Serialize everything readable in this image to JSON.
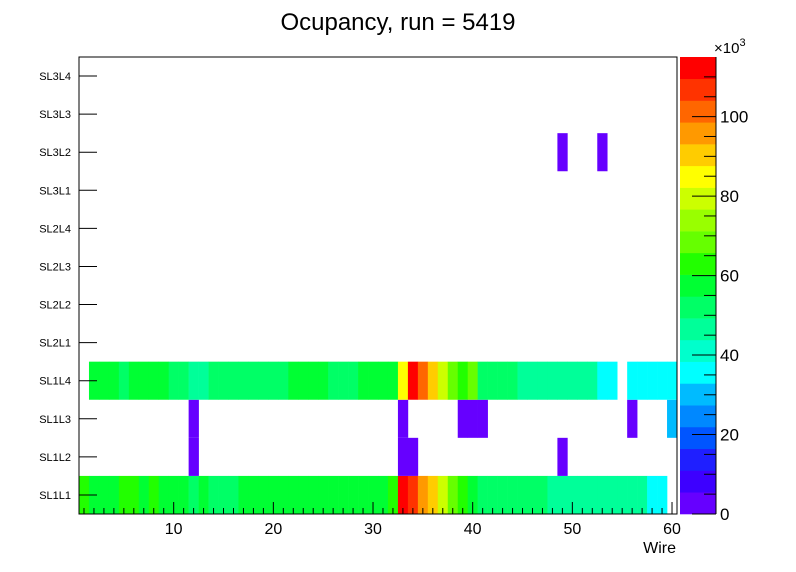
{
  "chart_data": {
    "type": "heatmap",
    "title": "Ocupancy, run = 5419",
    "xlabel": "Wire",
    "ylabel": "",
    "x_range": [
      0.5,
      60.5
    ],
    "x_ticks": [
      10,
      20,
      30,
      40,
      50,
      60
    ],
    "rows": [
      "SL1L1",
      "SL1L2",
      "SL1L3",
      "SL1L4",
      "SL2L1",
      "SL2L2",
      "SL2L3",
      "SL2L4",
      "SL3L1",
      "SL3L2",
      "SL3L3",
      "SL3L4"
    ],
    "z_range": [
      0,
      115000
    ],
    "z_ticks": [
      0,
      20,
      40,
      60,
      80,
      100
    ],
    "z_multiplier": "×10",
    "z_multiplier_exp": "3",
    "palette": [
      "#6600ff",
      "#3d00ff",
      "#1f1fff",
      "#0055ff",
      "#0088ff",
      "#00bbff",
      "#00ffff",
      "#00ffcc",
      "#00ff99",
      "#00ff66",
      "#00ff33",
      "#22ff00",
      "#66ff00",
      "#99ff00",
      "#ccff00",
      "#ffff00",
      "#ffcc00",
      "#ff9900",
      "#ff6600",
      "#ff3300",
      "#ff0000"
    ],
    "cells": {
      "SL1L1": [
        [
          1,
          62000
        ],
        [
          2,
          59000
        ],
        [
          3,
          58000
        ],
        [
          4,
          58000
        ],
        [
          5,
          61000
        ],
        [
          6,
          65000
        ],
        [
          7,
          60000
        ],
        [
          8,
          62000
        ],
        [
          9,
          60000
        ],
        [
          10,
          57000
        ],
        [
          11,
          55000
        ],
        [
          12,
          54000
        ],
        [
          13,
          55000
        ],
        [
          14,
          50000
        ],
        [
          15,
          50000
        ],
        [
          16,
          53000
        ],
        [
          17,
          57000
        ],
        [
          18,
          57000
        ],
        [
          19,
          57000
        ],
        [
          20,
          57000
        ],
        [
          21,
          57000
        ],
        [
          22,
          57000
        ],
        [
          23,
          57000
        ],
        [
          24,
          57000
        ],
        [
          25,
          60000
        ],
        [
          26,
          57000
        ],
        [
          27,
          57000
        ],
        [
          28,
          57000
        ],
        [
          29,
          57000
        ],
        [
          30,
          57000
        ],
        [
          31,
          57000
        ],
        [
          32,
          62000
        ],
        [
          33,
          110000
        ],
        [
          34,
          105000
        ],
        [
          35,
          95000
        ],
        [
          36,
          90000
        ],
        [
          37,
          80000
        ],
        [
          38,
          67000
        ],
        [
          39,
          63000
        ],
        [
          40,
          60000
        ],
        [
          41,
          54000
        ],
        [
          42,
          54000
        ],
        [
          43,
          54000
        ],
        [
          44,
          54000
        ],
        [
          45,
          54000
        ],
        [
          46,
          54000
        ],
        [
          47,
          54000
        ],
        [
          48,
          45000
        ],
        [
          49,
          45000
        ],
        [
          50,
          45000
        ],
        [
          51,
          45000
        ],
        [
          52,
          45000
        ],
        [
          53,
          45000
        ],
        [
          54,
          45000
        ],
        [
          55,
          45000
        ],
        [
          56,
          45000
        ],
        [
          57,
          45000
        ],
        [
          58,
          38000
        ],
        [
          59,
          38000
        ]
      ],
      "SL1L2": [
        [
          12,
          2000
        ],
        [
          33,
          2000
        ],
        [
          34,
          2000
        ],
        [
          49,
          2000
        ]
      ],
      "SL1L3": [
        [
          12,
          2000
        ],
        [
          33,
          2000
        ],
        [
          39,
          2000
        ],
        [
          40,
          2000
        ],
        [
          41,
          2000
        ],
        [
          56,
          2000
        ],
        [
          60,
          30000
        ]
      ],
      "SL1L4": [
        [
          2,
          58000
        ],
        [
          3,
          58000
        ],
        [
          4,
          58000
        ],
        [
          5,
          54000
        ],
        [
          6,
          58000
        ],
        [
          7,
          58000
        ],
        [
          8,
          58000
        ],
        [
          9,
          58000
        ],
        [
          10,
          54000
        ],
        [
          11,
          54000
        ],
        [
          12,
          45000
        ],
        [
          13,
          45000
        ],
        [
          14,
          50000
        ],
        [
          15,
          50000
        ],
        [
          16,
          50000
        ],
        [
          17,
          50000
        ],
        [
          18,
          50000
        ],
        [
          19,
          50000
        ],
        [
          20,
          50000
        ],
        [
          21,
          50000
        ],
        [
          22,
          58000
        ],
        [
          23,
          58000
        ],
        [
          24,
          58000
        ],
        [
          25,
          58000
        ],
        [
          26,
          54000
        ],
        [
          27,
          54000
        ],
        [
          28,
          54000
        ],
        [
          29,
          58000
        ],
        [
          30,
          58000
        ],
        [
          31,
          58000
        ],
        [
          32,
          58000
        ],
        [
          33,
          85000
        ],
        [
          34,
          110000
        ],
        [
          35,
          100000
        ],
        [
          36,
          90000
        ],
        [
          37,
          80000
        ],
        [
          38,
          67000
        ],
        [
          39,
          63000
        ],
        [
          40,
          68000
        ],
        [
          41,
          54000
        ],
        [
          42,
          54000
        ],
        [
          43,
          54000
        ],
        [
          44,
          54000
        ],
        [
          45,
          45000
        ],
        [
          46,
          45000
        ],
        [
          47,
          45000
        ],
        [
          48,
          45000
        ],
        [
          49,
          45000
        ],
        [
          50,
          45000
        ],
        [
          51,
          45000
        ],
        [
          52,
          45000
        ],
        [
          53,
          38000
        ],
        [
          54,
          38000
        ],
        [
          56,
          38000
        ],
        [
          57,
          38000
        ],
        [
          58,
          38000
        ],
        [
          59,
          38000
        ],
        [
          60,
          38000
        ]
      ],
      "SL3L2": [
        [
          49,
          2000
        ],
        [
          53,
          2000
        ]
      ]
    }
  }
}
